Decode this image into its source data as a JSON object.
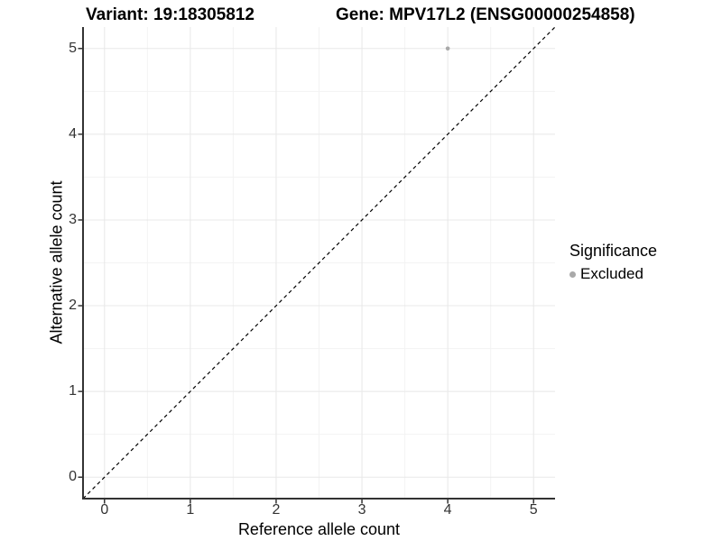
{
  "header": {
    "title_variant": "Variant: 19:18305812",
    "title_gene": "Gene: MPV17L2 (ENSG00000254858)"
  },
  "chart_data": {
    "type": "scatter",
    "xlabel": "Reference allele count",
    "ylabel": "Alternative allele count",
    "xlim": [
      -0.25,
      5.25
    ],
    "ylim": [
      -0.25,
      5.25
    ],
    "xticks": [
      "0",
      "1",
      "2",
      "3",
      "4",
      "5"
    ],
    "yticks": [
      "0",
      "1",
      "2",
      "3",
      "4",
      "5"
    ],
    "major_grid": [
      0,
      1,
      2,
      3,
      4,
      5
    ],
    "minor_grid": [
      0.5,
      1.5,
      2.5,
      3.5,
      4.5
    ],
    "grid": true,
    "series": [
      {
        "name": "Excluded",
        "points": [
          {
            "x": 4,
            "y": 5
          }
        ]
      }
    ],
    "reference_line": {
      "type": "identity",
      "equation": "y = x",
      "style": "dashed"
    },
    "legend": {
      "position": "right",
      "title": "Significance",
      "entries": [
        {
          "label": "Excluded",
          "color": "#a9a9a9"
        }
      ]
    },
    "colors": {
      "point": "#a9a9a9",
      "reference_line": "#000000",
      "axis_line": "#333333",
      "grid_major": "#e8e8e8",
      "grid_minor": "#f3f3f3",
      "tick_text": "#333333"
    }
  }
}
